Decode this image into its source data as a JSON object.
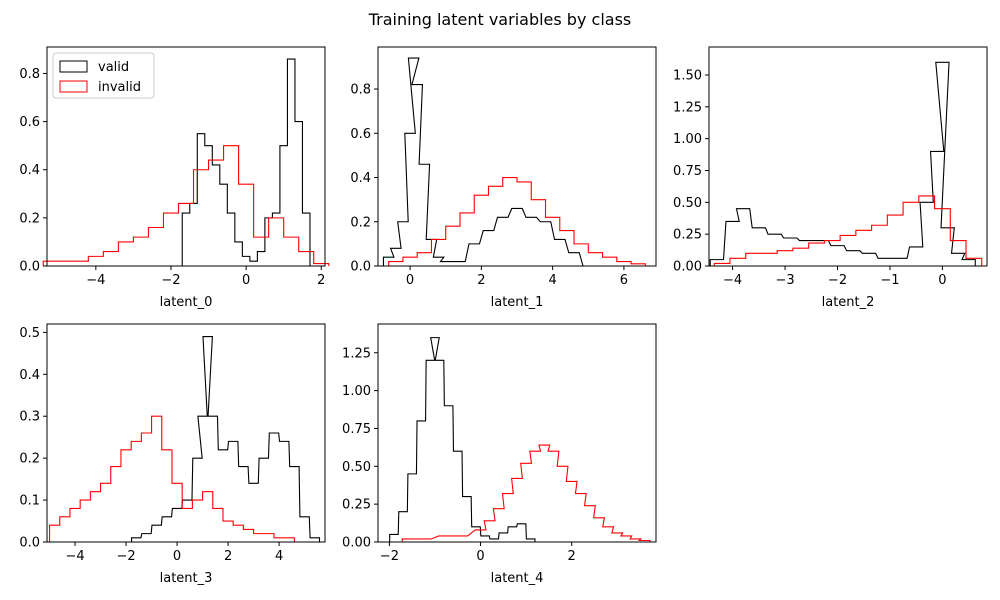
{
  "figure": {
    "title": "Training latent variables by class"
  },
  "chart_data": [
    {
      "type": "histogram-step",
      "xlabel": "latent_0",
      "xlim": [
        -5.3,
        2.1
      ],
      "ylim": [
        0,
        0.91
      ],
      "xticks": [
        -4,
        -2,
        0,
        2
      ],
      "yticks": [
        0.0,
        0.2,
        0.4,
        0.6,
        0.8
      ],
      "ytick_labels": [
        "0.0",
        "0.2",
        "0.4",
        "0.6",
        "0.8"
      ],
      "legend": {
        "position": "upper-left",
        "entries": [
          "valid",
          "invalid"
        ]
      },
      "series": [
        {
          "name": "valid",
          "color": "#000000",
          "x": [
            -1.8,
            -1.6,
            -1.4,
            -1.2,
            -1.0,
            -0.8,
            -0.6,
            -0.4,
            -0.2,
            0.0,
            0.2,
            0.4,
            0.6,
            0.8,
            1.0,
            1.2,
            1.4,
            1.6,
            1.8
          ],
          "y": [
            0.0,
            0.22,
            0.26,
            0.55,
            0.5,
            0.42,
            0.34,
            0.22,
            0.1,
            0.04,
            0.02,
            0.06,
            0.2,
            0.22,
            0.5,
            0.86,
            0.6,
            0.22,
            0.0
          ]
        },
        {
          "name": "invalid",
          "color": "#ff0000",
          "x": [
            -5.2,
            -4.8,
            -4.4,
            -4.0,
            -3.6,
            -3.2,
            -2.8,
            -2.4,
            -2.0,
            -1.6,
            -1.2,
            -0.8,
            -0.4,
            0.0,
            0.4,
            0.8,
            1.2,
            1.6,
            2.0
          ],
          "y": [
            0.02,
            0.02,
            0.02,
            0.04,
            0.06,
            0.1,
            0.12,
            0.16,
            0.22,
            0.26,
            0.4,
            0.44,
            0.5,
            0.34,
            0.12,
            0.2,
            0.12,
            0.06,
            0.01
          ]
        }
      ]
    },
    {
      "type": "histogram-step",
      "xlabel": "latent_1",
      "xlim": [
        -0.9,
        6.9
      ],
      "ylim": [
        0,
        0.99
      ],
      "xticks": [
        0,
        2,
        4,
        6
      ],
      "yticks": [
        0.0,
        0.2,
        0.4,
        0.6,
        0.8
      ],
      "ytick_labels": [
        "0.0",
        "0.2",
        "0.4",
        "0.6",
        "0.8"
      ],
      "series": [
        {
          "name": "valid",
          "color": "#000000",
          "x": [
            -0.6,
            -0.4,
            -0.2,
            0.0,
            0.1,
            0.2,
            0.4,
            0.6,
            0.8,
            1.0,
            1.4,
            1.8,
            2.2,
            2.6,
            3.0,
            3.4,
            3.8,
            4.2,
            4.6,
            5.0
          ],
          "y": [
            0.04,
            0.08,
            0.2,
            0.6,
            0.94,
            0.82,
            0.46,
            0.12,
            0.04,
            0.02,
            0.02,
            0.1,
            0.16,
            0.22,
            0.26,
            0.22,
            0.2,
            0.12,
            0.06,
            0.0
          ]
        },
        {
          "name": "invalid",
          "color": "#ff0000",
          "x": [
            -0.4,
            0.0,
            0.4,
            0.8,
            1.2,
            1.6,
            2.0,
            2.4,
            2.8,
            3.2,
            3.6,
            4.0,
            4.4,
            4.8,
            5.2,
            5.6,
            6.0,
            6.4
          ],
          "y": [
            0.02,
            0.04,
            0.06,
            0.12,
            0.18,
            0.24,
            0.32,
            0.36,
            0.4,
            0.38,
            0.3,
            0.22,
            0.16,
            0.1,
            0.06,
            0.04,
            0.02,
            0.01
          ]
        }
      ]
    },
    {
      "type": "histogram-step",
      "xlabel": "latent_2",
      "xlim": [
        -4.45,
        0.85
      ],
      "ylim": [
        0,
        1.72
      ],
      "xticks": [
        -4,
        -3,
        -2,
        -1,
        0
      ],
      "yticks": [
        0.0,
        0.25,
        0.5,
        0.75,
        1.0,
        1.25,
        1.5
      ],
      "ytick_labels": [
        "0.00",
        "0.25",
        "0.50",
        "0.75",
        "1.00",
        "1.25",
        "1.50"
      ],
      "series": [
        {
          "name": "valid",
          "color": "#000000",
          "x": [
            -4.3,
            -4.0,
            -3.8,
            -3.5,
            -3.2,
            -2.9,
            -2.6,
            -2.3,
            -2.0,
            -1.7,
            -1.4,
            -1.1,
            -0.8,
            -0.5,
            -0.3,
            -0.1,
            0.0,
            0.1,
            0.3,
            0.5
          ],
          "y": [
            0.05,
            0.35,
            0.45,
            0.3,
            0.25,
            0.22,
            0.2,
            0.2,
            0.16,
            0.12,
            0.1,
            0.06,
            0.06,
            0.15,
            0.5,
            0.9,
            1.6,
            0.3,
            0.1,
            0.05
          ]
        },
        {
          "name": "invalid",
          "color": "#ff0000",
          "x": [
            -4.2,
            -3.9,
            -3.6,
            -3.3,
            -3.0,
            -2.7,
            -2.4,
            -2.1,
            -1.8,
            -1.5,
            -1.2,
            -0.9,
            -0.6,
            -0.3,
            0.0,
            0.3,
            0.6
          ],
          "y": [
            0.02,
            0.06,
            0.1,
            0.1,
            0.12,
            0.14,
            0.18,
            0.2,
            0.24,
            0.28,
            0.32,
            0.4,
            0.5,
            0.55,
            0.45,
            0.2,
            0.06
          ]
        }
      ]
    },
    {
      "type": "histogram-step",
      "xlabel": "latent_3",
      "xlim": [
        -5.1,
        5.8
      ],
      "ylim": [
        0,
        0.52
      ],
      "xticks": [
        -4,
        -2,
        0,
        2,
        4
      ],
      "yticks": [
        0.0,
        0.1,
        0.2,
        0.3,
        0.4,
        0.5
      ],
      "ytick_labels": [
        "0.0",
        "0.1",
        "0.2",
        "0.3",
        "0.4",
        "0.5"
      ],
      "series": [
        {
          "name": "valid",
          "color": "#000000",
          "x": [
            -1.6,
            -1.2,
            -0.8,
            -0.4,
            0.0,
            0.4,
            0.8,
            1.0,
            1.2,
            1.4,
            1.8,
            2.2,
            2.6,
            3.0,
            3.4,
            3.8,
            4.2,
            4.6,
            5.0,
            5.4
          ],
          "y": [
            0.01,
            0.02,
            0.04,
            0.06,
            0.08,
            0.1,
            0.2,
            0.3,
            0.49,
            0.3,
            0.22,
            0.24,
            0.18,
            0.14,
            0.2,
            0.26,
            0.24,
            0.18,
            0.06,
            0.01
          ]
        },
        {
          "name": "invalid",
          "color": "#ff0000",
          "x": [
            -4.8,
            -4.4,
            -4.0,
            -3.6,
            -3.2,
            -2.8,
            -2.4,
            -2.0,
            -1.6,
            -1.2,
            -0.8,
            -0.4,
            0.0,
            0.4,
            0.8,
            1.2,
            1.6,
            2.0,
            2.4,
            2.8,
            3.2,
            3.6,
            4.0,
            4.4
          ],
          "y": [
            0.04,
            0.06,
            0.08,
            0.1,
            0.12,
            0.14,
            0.18,
            0.22,
            0.24,
            0.26,
            0.3,
            0.22,
            0.14,
            0.08,
            0.1,
            0.12,
            0.08,
            0.05,
            0.04,
            0.03,
            0.02,
            0.02,
            0.01,
            0.01
          ]
        }
      ]
    },
    {
      "type": "histogram-step",
      "xlabel": "latent_4",
      "xlim": [
        -2.25,
        3.85
      ],
      "ylim": [
        0,
        1.44
      ],
      "xticks": [
        -2,
        0,
        2
      ],
      "yticks": [
        0.0,
        0.25,
        0.5,
        0.75,
        1.0,
        1.25
      ],
      "ytick_labels": [
        "0.00",
        "0.25",
        "0.50",
        "0.75",
        "1.00",
        "1.25"
      ],
      "series": [
        {
          "name": "valid",
          "color": "#000000",
          "x": [
            -1.9,
            -1.7,
            -1.5,
            -1.3,
            -1.1,
            -1.0,
            -0.9,
            -0.7,
            -0.5,
            -0.3,
            -0.1,
            0.1,
            0.3,
            0.5,
            0.7,
            0.9,
            1.1
          ],
          "y": [
            0.05,
            0.2,
            0.45,
            0.8,
            1.2,
            1.35,
            1.2,
            0.9,
            0.6,
            0.3,
            0.1,
            0.04,
            0.02,
            0.06,
            0.1,
            0.12,
            0.02
          ]
        },
        {
          "name": "invalid",
          "color": "#ff0000",
          "x": [
            -1.6,
            -1.2,
            -0.8,
            -0.4,
            0.0,
            0.2,
            0.4,
            0.6,
            0.8,
            1.0,
            1.2,
            1.4,
            1.6,
            1.8,
            2.0,
            2.2,
            2.4,
            2.6,
            2.8,
            3.0,
            3.2,
            3.4,
            3.6
          ],
          "y": [
            0.02,
            0.02,
            0.04,
            0.04,
            0.08,
            0.14,
            0.22,
            0.32,
            0.42,
            0.52,
            0.6,
            0.64,
            0.6,
            0.5,
            0.4,
            0.32,
            0.24,
            0.16,
            0.1,
            0.06,
            0.04,
            0.02,
            0.01
          ]
        }
      ]
    }
  ]
}
